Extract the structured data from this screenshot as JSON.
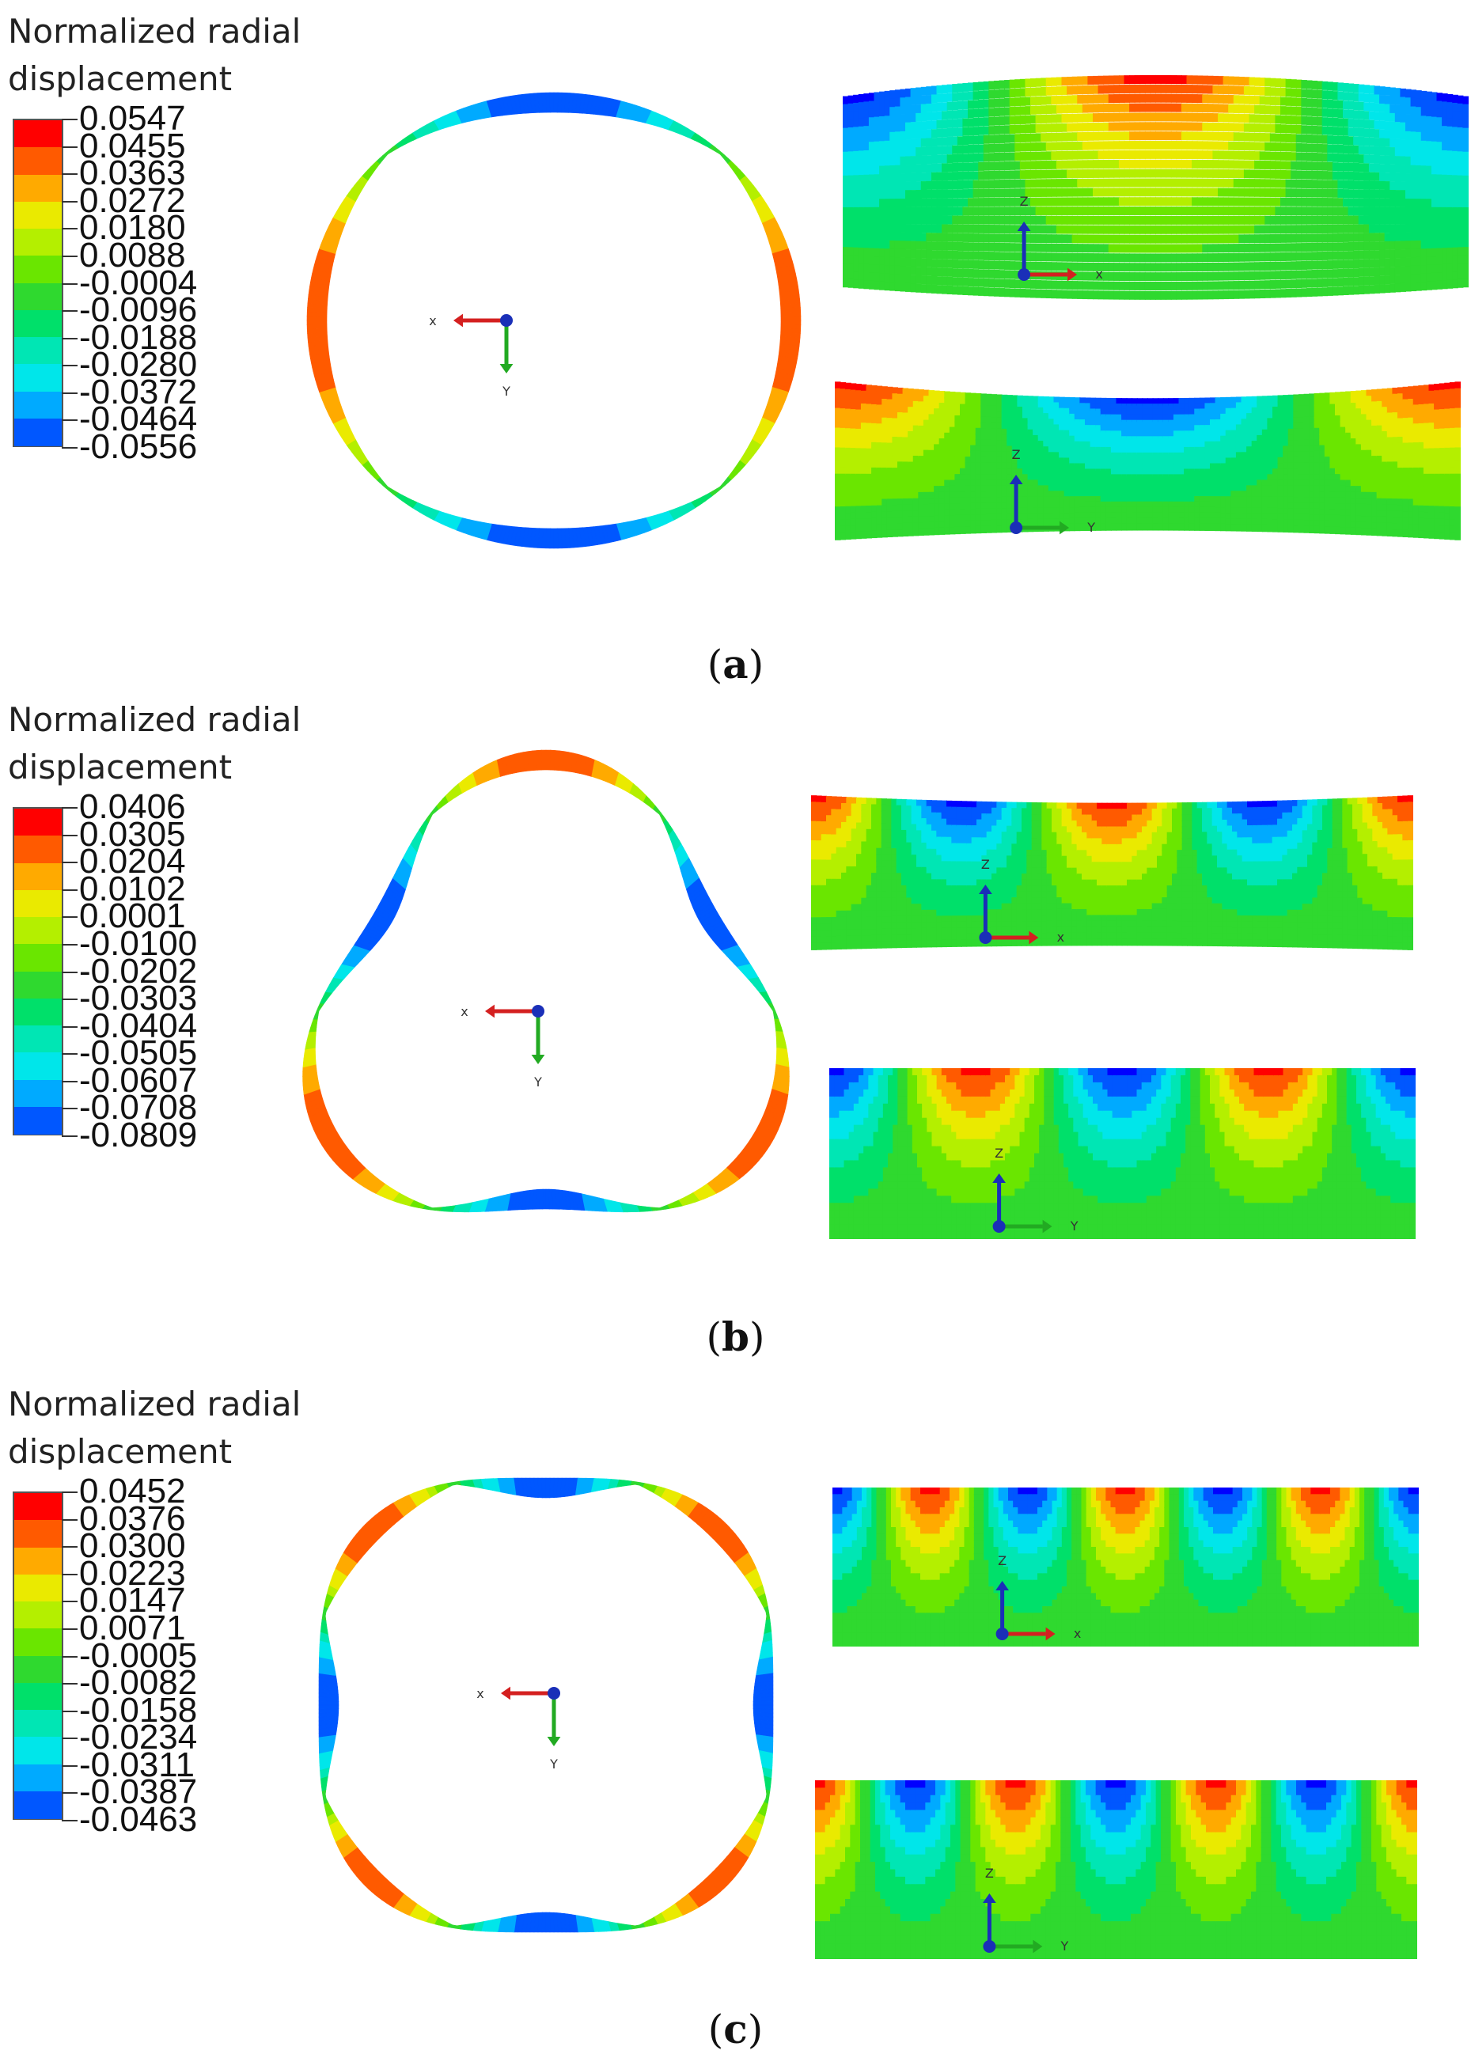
{
  "legend_title": [
    "Normalized radial",
    "displacement"
  ],
  "colorscale": [
    "#ff0000",
    "#ff5a00",
    "#ffaa00",
    "#eaea00",
    "#b4ef00",
    "#6ae600",
    "#2fd92f",
    "#00e06a",
    "#00e6b4",
    "#00e6ea",
    "#00aaff",
    "#0057ff",
    "#0000ff"
  ],
  "axis_labels": {
    "x": "x",
    "y": "Y",
    "z": "Z"
  },
  "axis_colors": {
    "x": "#d42020",
    "y": "#22aa22",
    "z": "#1a2fb8",
    "origin": "#1a2fb8"
  },
  "panels": [
    {
      "caption": "a",
      "legend_values": [
        "0.0547",
        "0.0455",
        "0.0363",
        "0.0272",
        "0.0180",
        "0.0088",
        "-0.0004",
        "-0.0096",
        "-0.0188",
        "-0.0280",
        "-0.0372",
        "-0.0464",
        "-0.0556"
      ],
      "ring_lobes": 2,
      "strip_top_lobes": 1,
      "strip_bottom_lobes": 1
    },
    {
      "caption": "b",
      "legend_values": [
        "0.0406",
        "0.0305",
        "0.0204",
        "0.0102",
        "0.0001",
        "-0.0100",
        "-0.0202",
        "-0.0303",
        "-0.0404",
        "-0.0505",
        "-0.0607",
        "-0.0708",
        "-0.0809"
      ],
      "ring_lobes": 3,
      "strip_top_lobes": 2,
      "strip_bottom_lobes": 2
    },
    {
      "caption": "c",
      "legend_values": [
        "0.0452",
        "0.0376",
        "0.0300",
        "0.0223",
        "0.0147",
        "0.0071",
        "-0.0005",
        "-0.0082",
        "-0.0158",
        "-0.0234",
        "-0.0311",
        "-0.0387",
        "-0.0463"
      ],
      "ring_lobes": 4,
      "strip_top_lobes": 3,
      "strip_bottom_lobes": 3
    }
  ]
}
